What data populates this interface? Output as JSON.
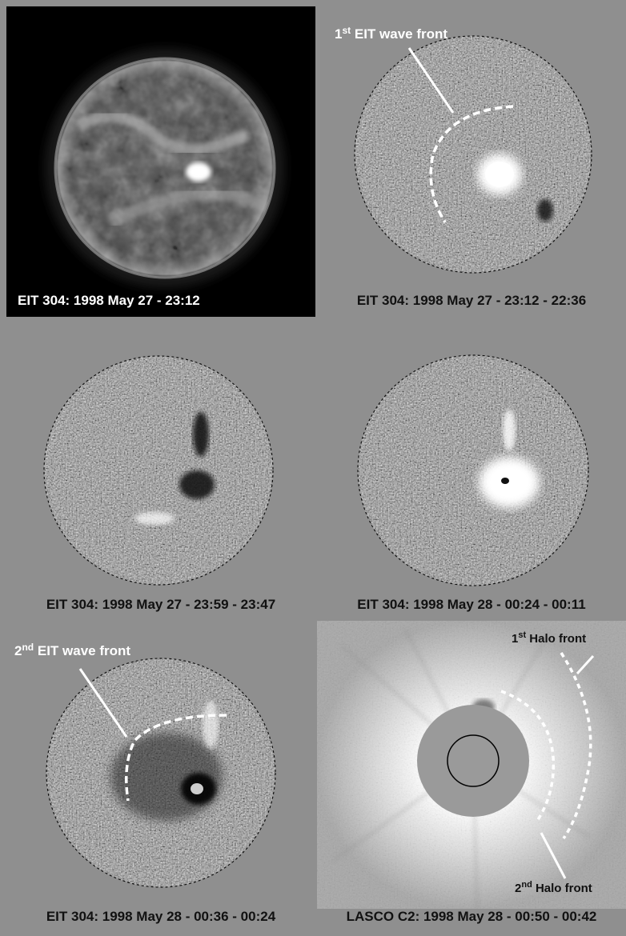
{
  "panels": [
    {
      "caption": "EIT 304: 1998 May 27 - 23:12"
    },
    {
      "caption": "EIT 304: 1998 May 27 - 23:12 - 22:36",
      "annotation_sup": "st",
      "annotation_prefix": "1",
      "annotation_rest": " EIT wave front"
    },
    {
      "caption": "EIT 304: 1998 May 27 - 23:59 - 23:47"
    },
    {
      "caption": "EIT 304: 1998 May 28 - 00:24 - 00:11"
    },
    {
      "caption": "EIT 304: 1998 May 28 - 00:36 - 00:24",
      "annotation_sup": "nd",
      "annotation_prefix": "2",
      "annotation_rest": " EIT wave front"
    },
    {
      "caption": "LASCO C2: 1998 May 28 - 00:50 - 00:42",
      "halo1": {
        "prefix": "1",
        "sup": "st",
        "rest": " Halo front"
      },
      "halo2": {
        "prefix": "2",
        "sup": "nd",
        "rest": " Halo front"
      }
    }
  ],
  "colors": {
    "background": "#8f8f8f",
    "sun_panel_bg": "#000000",
    "annotation": "#ffffff"
  }
}
